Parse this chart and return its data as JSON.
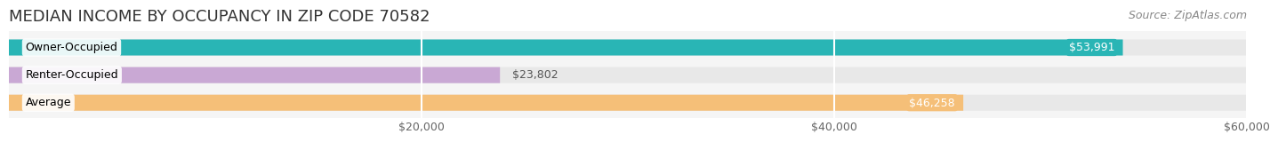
{
  "title": "MEDIAN INCOME BY OCCUPANCY IN ZIP CODE 70582",
  "source": "Source: ZipAtlas.com",
  "categories": [
    "Owner-Occupied",
    "Renter-Occupied",
    "Average"
  ],
  "values": [
    53991,
    23802,
    46258
  ],
  "bar_colors": [
    "#29b5b5",
    "#c9a8d4",
    "#f5bf78"
  ],
  "bar_label_inside_color": [
    "white",
    "black",
    "white"
  ],
  "bar_labels": [
    "$53,991",
    "$23,802",
    "$46,258"
  ],
  "bar_label_inside": [
    true,
    false,
    true
  ],
  "xlim": [
    0,
    60000
  ],
  "xticks": [
    20000,
    40000,
    60000
  ],
  "xticklabels": [
    "$20,000",
    "$40,000",
    "$60,000"
  ],
  "bg_bar_color": "#e8e8e8",
  "fig_bg": "#ffffff",
  "plot_bg": "#f5f5f5",
  "title_fontsize": 13,
  "source_fontsize": 9,
  "label_fontsize": 9,
  "cat_fontsize": 9,
  "tick_fontsize": 9
}
